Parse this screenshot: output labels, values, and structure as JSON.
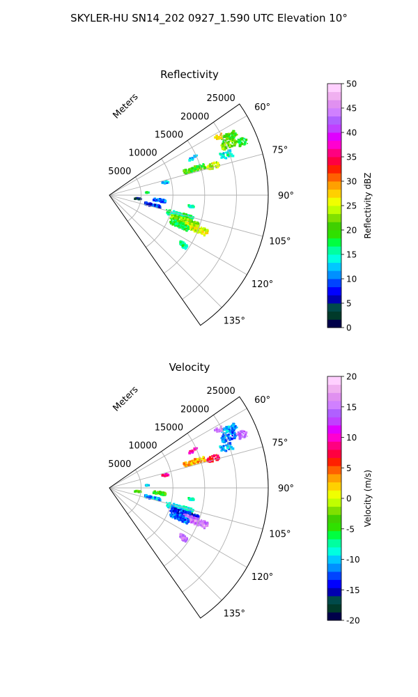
{
  "figure": {
    "title": "SKYLER-HU  SN14_202  0927_1.590 UTC Elevation 10°"
  },
  "chart_data": [
    {
      "type": "heatmap",
      "projection": "polar-sector",
      "title": "Reflectivity",
      "range_label": "Meters",
      "range_ticks": [
        5000,
        10000,
        15000,
        20000,
        25000
      ],
      "range_max": 25000,
      "azimuth_range": [
        55,
        145
      ],
      "azimuth_ticks": [
        60,
        75,
        90,
        105,
        120,
        135
      ],
      "azimuth_tick_labels": [
        "60°",
        "75°",
        "90°",
        "105°",
        "120°",
        "135°"
      ],
      "grid": true,
      "colorbar": {
        "label": "Reflectivity dBZ",
        "min": 0,
        "max": 50,
        "ticks": [
          0,
          5,
          10,
          15,
          20,
          25,
          30,
          35,
          40,
          45,
          50
        ],
        "colors": [
          "#00004a",
          "#003a2a",
          "#004a4a",
          "#0000b0",
          "#0000ff",
          "#0044ff",
          "#0090ff",
          "#00c8ff",
          "#00ffe0",
          "#00ffa0",
          "#00ff40",
          "#30e000",
          "#40d000",
          "#80e000",
          "#c0ff00",
          "#f0ff00",
          "#ffd000",
          "#ffa000",
          "#ff6000",
          "#ff2000",
          "#ff0040",
          "#ff0080",
          "#ff00d0",
          "#e000ff",
          "#c040ff",
          "#b060ff",
          "#d080ff",
          "#e090f0",
          "#f0b0f0",
          "#ffd0ff"
        ]
      },
      "echoes": [
        {
          "az": 64,
          "r": 21000,
          "w": 3,
          "dr": 2500,
          "value": 20
        },
        {
          "az": 62,
          "r": 19500,
          "w": 2,
          "dr": 1200,
          "value": 27
        },
        {
          "az": 67,
          "r": 20500,
          "w": 3,
          "dr": 2500,
          "value": 22
        },
        {
          "az": 68,
          "r": 22500,
          "w": 3,
          "dr": 1500,
          "value": 18
        },
        {
          "az": 71,
          "r": 19500,
          "w": 3,
          "dr": 2000,
          "value": 14
        },
        {
          "az": 73,
          "r": 14000,
          "w": 3,
          "dr": 3500,
          "value": 20
        },
        {
          "az": 74,
          "r": 17000,
          "w": 3,
          "dr": 2000,
          "value": 24
        },
        {
          "az": 66,
          "r": 14500,
          "w": 2,
          "dr": 1500,
          "value": 12
        },
        {
          "az": 77,
          "r": 9000,
          "w": 2,
          "dr": 1000,
          "value": 12
        },
        {
          "az": 86,
          "r": 6000,
          "w": 1,
          "dr": 500,
          "value": 18
        },
        {
          "az": 96,
          "r": 8000,
          "w": 3,
          "dr": 2000,
          "value": 10
        },
        {
          "az": 97,
          "r": 4500,
          "w": 2,
          "dr": 1000,
          "value": 5
        },
        {
          "az": 103,
          "r": 7000,
          "w": 3,
          "dr": 2500,
          "value": 8
        },
        {
          "az": 106,
          "r": 11500,
          "w": 4,
          "dr": 4500,
          "value": 16
        },
        {
          "az": 109,
          "r": 12500,
          "w": 4,
          "dr": 4500,
          "value": 22
        },
        {
          "az": 111,
          "r": 14500,
          "w": 4,
          "dr": 4000,
          "value": 25
        },
        {
          "az": 113,
          "r": 12000,
          "w": 4,
          "dr": 3000,
          "value": 18
        },
        {
          "az": 124,
          "r": 14000,
          "w": 3,
          "dr": 1500,
          "value": 16
        },
        {
          "az": 98,
          "r": 13000,
          "w": 2,
          "dr": 1000,
          "value": 14
        }
      ]
    },
    {
      "type": "heatmap",
      "projection": "polar-sector",
      "title": "Velocity",
      "range_label": "Meters",
      "range_ticks": [
        5000,
        10000,
        15000,
        20000,
        25000
      ],
      "range_max": 25000,
      "azimuth_range": [
        55,
        145
      ],
      "azimuth_ticks": [
        60,
        75,
        90,
        105,
        120,
        135
      ],
      "azimuth_tick_labels": [
        "60°",
        "75°",
        "90°",
        "105°",
        "120°",
        "135°"
      ],
      "grid": true,
      "colorbar": {
        "label": "Velocity (m/s)",
        "min": -20,
        "max": 20,
        "ticks": [
          -20,
          -15,
          -10,
          -5,
          0,
          5,
          10,
          15,
          20
        ],
        "colors": [
          "#00004a",
          "#003a2a",
          "#004a4a",
          "#0000b0",
          "#0000ff",
          "#0044ff",
          "#0090ff",
          "#00c8ff",
          "#00ffe0",
          "#00ffa0",
          "#00ff40",
          "#30e000",
          "#40d000",
          "#80e000",
          "#c0ff00",
          "#f0ff00",
          "#ffd000",
          "#ffa000",
          "#ff6000",
          "#ff2000",
          "#ff0040",
          "#ff0080",
          "#ff00d0",
          "#e000ff",
          "#c040ff",
          "#b060ff",
          "#d080ff",
          "#e090f0",
          "#f0b0f0",
          "#ffd0ff"
        ]
      },
      "echoes": [
        {
          "az": 64,
          "r": 21000,
          "w": 3,
          "dr": 2500,
          "value": -11
        },
        {
          "az": 62,
          "r": 19500,
          "w": 2,
          "dr": 1200,
          "value": 15
        },
        {
          "az": 67,
          "r": 20500,
          "w": 3,
          "dr": 2500,
          "value": -12
        },
        {
          "az": 68,
          "r": 22500,
          "w": 3,
          "dr": 1500,
          "value": 14
        },
        {
          "az": 71,
          "r": 19500,
          "w": 3,
          "dr": 2000,
          "value": -11
        },
        {
          "az": 73,
          "r": 14000,
          "w": 3,
          "dr": 3500,
          "value": 3
        },
        {
          "az": 74,
          "r": 17000,
          "w": 3,
          "dr": 2000,
          "value": 7
        },
        {
          "az": 66,
          "r": 14500,
          "w": 2,
          "dr": 1500,
          "value": 9
        },
        {
          "az": 77,
          "r": 9000,
          "w": 2,
          "dr": 1000,
          "value": 9
        },
        {
          "az": 86,
          "r": 6000,
          "w": 1,
          "dr": 500,
          "value": -10
        },
        {
          "az": 96,
          "r": 8000,
          "w": 3,
          "dr": 2000,
          "value": -4
        },
        {
          "az": 97,
          "r": 4500,
          "w": 2,
          "dr": 1000,
          "value": -3
        },
        {
          "az": 103,
          "r": 7000,
          "w": 3,
          "dr": 2500,
          "value": -11
        },
        {
          "az": 106,
          "r": 11500,
          "w": 4,
          "dr": 4500,
          "value": -9
        },
        {
          "az": 109,
          "r": 12500,
          "w": 4,
          "dr": 4500,
          "value": -14
        },
        {
          "az": 111,
          "r": 14500,
          "w": 4,
          "dr": 4000,
          "value": 15
        },
        {
          "az": 113,
          "r": 12000,
          "w": 4,
          "dr": 3000,
          "value": -12
        },
        {
          "az": 124,
          "r": 14000,
          "w": 3,
          "dr": 1500,
          "value": 15
        },
        {
          "az": 98,
          "r": 13000,
          "w": 2,
          "dr": 1000,
          "value": -9
        }
      ]
    }
  ]
}
